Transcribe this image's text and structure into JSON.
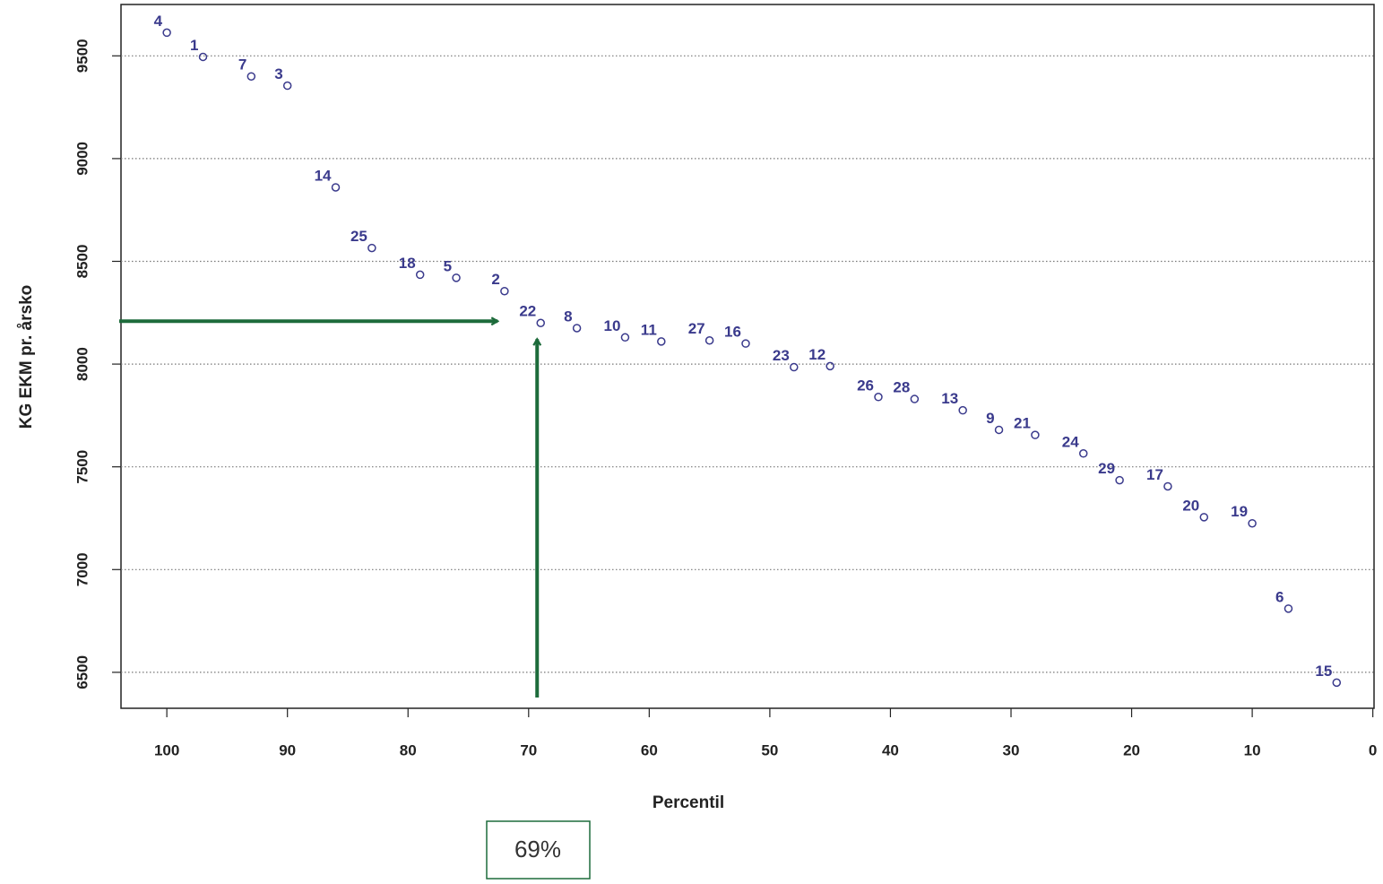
{
  "chart_data": {
    "type": "scatter",
    "x_label": "Percentil",
    "y_label": "KG EKM pr. årsko",
    "x": [
      100,
      97,
      93,
      90,
      86,
      83,
      79,
      76,
      72,
      69,
      66,
      62,
      59,
      55,
      52,
      48,
      45,
      41,
      38,
      34,
      31,
      28,
      24,
      21,
      17,
      14,
      10,
      7,
      3
    ],
    "series": [
      {
        "color": "#3a3a8c",
        "values": [
          9613,
          9495,
          9400,
          9355,
          8860,
          8565,
          8435,
          8420,
          8355,
          8200,
          8175,
          8130,
          8110,
          8115,
          8100,
          7985,
          7990,
          7840,
          7830,
          7775,
          7680,
          7655,
          7565,
          7435,
          7405,
          7255,
          7225,
          6810,
          6450
        ]
      }
    ],
    "point_labels": [
      "4",
      "1",
      "7",
      "3",
      "14",
      "25",
      "18",
      "5",
      "2",
      "22",
      "8",
      "10",
      "11",
      "27",
      "16",
      "23",
      "12",
      "26",
      "28",
      "13",
      "9",
      "21",
      "24",
      "29",
      "17",
      "20",
      "19",
      "6",
      "15"
    ],
    "xlim": [
      103.8,
      -0.1
    ],
    "ylim": [
      6325,
      9750
    ],
    "xticks": [
      100,
      90,
      80,
      70,
      60,
      50,
      40,
      30,
      20,
      10,
      0
    ],
    "yticks": [
      6500,
      7000,
      7500,
      8000,
      8500,
      9000,
      9500
    ],
    "grid": true,
    "annotation": {
      "text": "69%",
      "x": 69,
      "y": 8200,
      "color": "#1d6b3b"
    }
  }
}
